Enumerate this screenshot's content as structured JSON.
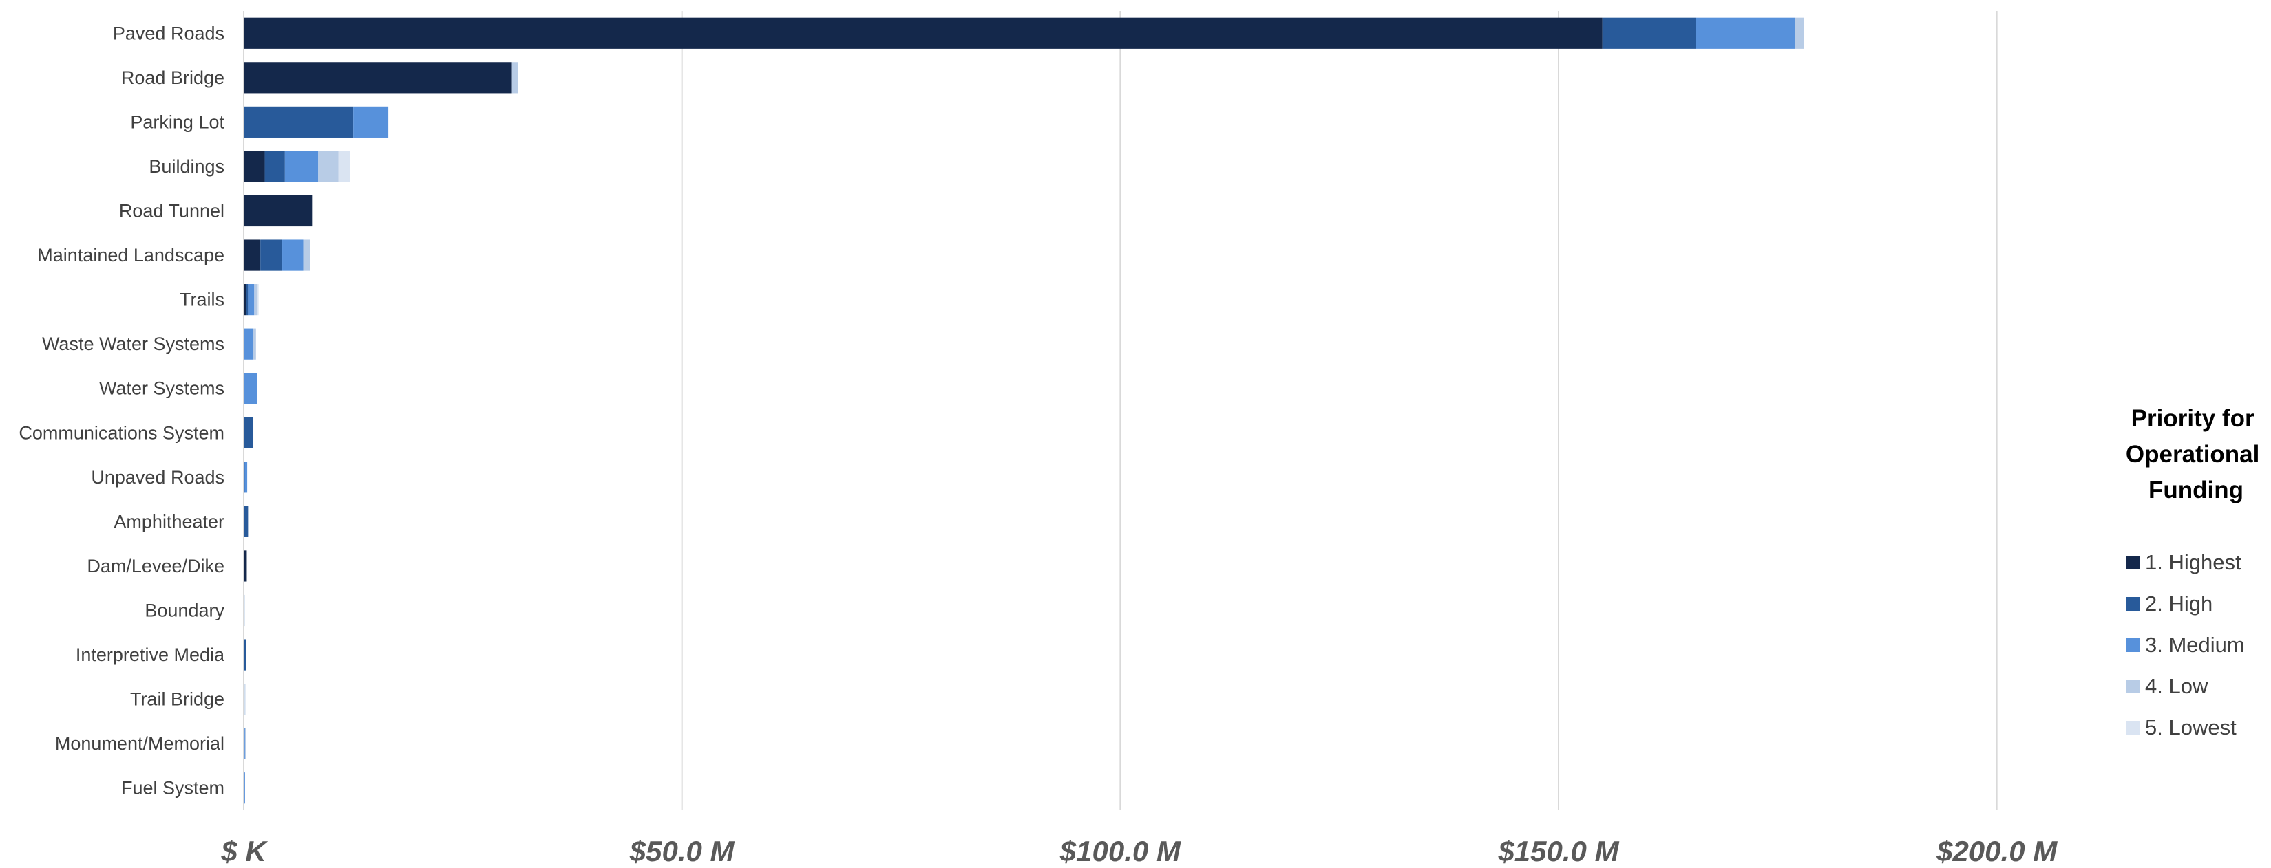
{
  "chart_data": {
    "type": "bar",
    "orientation": "horizontal",
    "stacked": true,
    "categories": [
      "Paved Roads",
      "Road Bridge",
      "Parking Lot",
      "Buildings",
      "Road Tunnel",
      "Maintained Landscape",
      "Trails",
      "Waste Water Systems",
      "Water Systems",
      "Communications System",
      "Unpaved Roads",
      "Amphitheater",
      "Dam/Levee/Dike",
      "Boundary",
      "Interpretive Media",
      "Trail Bridge",
      "Monument/Memorial",
      "Fuel System"
    ],
    "value_unit": "$ M",
    "xlim": [
      0,
      210
    ],
    "x_ticks": [
      0,
      50,
      100,
      150,
      200
    ],
    "x_tick_labels": [
      "$ K",
      "$50.0 M",
      "$100.0 M",
      "$150.0 M",
      "$200.0 M"
    ],
    "grid": "vertical",
    "legend_title_lines": [
      "Priority for",
      "Operational",
      "Funding"
    ],
    "legend_position": "right",
    "series": [
      {
        "name": "1. Highest",
        "color": "#14284B",
        "values": [
          155.0,
          30.6,
          0,
          2.4,
          7.8,
          1.9,
          0.3,
          0,
          0,
          0,
          0,
          0,
          0.35,
          0,
          0,
          0,
          0,
          0
        ]
      },
      {
        "name": "2. High",
        "color": "#285A9A",
        "values": [
          10.7,
          0,
          12.5,
          2.3,
          0,
          2.5,
          0.2,
          0,
          0,
          1.1,
          0.1,
          0.5,
          0,
          0,
          0.25,
          0,
          0,
          0
        ]
      },
      {
        "name": "3. Medium",
        "color": "#5791DB",
        "values": [
          11.3,
          0,
          4.0,
          3.8,
          0,
          2.4,
          0.7,
          1.1,
          1.5,
          0,
          0.3,
          0,
          0,
          0,
          0,
          0,
          0.15,
          0.15
        ]
      },
      {
        "name": "4. Low",
        "color": "#B8CCE6",
        "values": [
          1.0,
          0.7,
          0,
          2.3,
          0,
          0.8,
          0.3,
          0.3,
          0,
          0,
          0,
          0,
          0,
          0.1,
          0,
          0.1,
          0.1,
          0
        ]
      },
      {
        "name": "5. Lowest",
        "color": "#DAE4F2",
        "values": [
          0,
          0,
          0,
          1.3,
          0,
          0,
          0.2,
          0,
          0,
          0,
          0,
          0,
          0,
          0,
          0,
          0.1,
          0,
          0
        ]
      }
    ]
  }
}
